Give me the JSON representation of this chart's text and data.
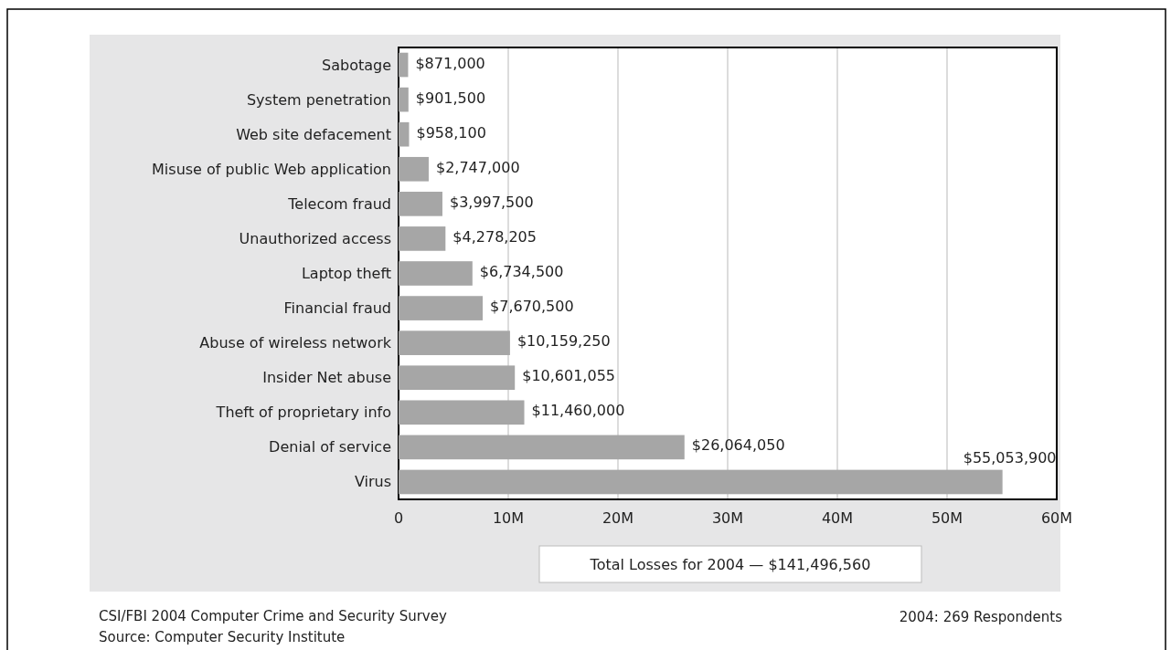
{
  "chart_data": {
    "type": "bar",
    "orientation": "horizontal",
    "categories": [
      "Sabotage",
      "System penetration",
      "Web site defacement",
      "Misuse of public Web application",
      "Telecom fraud",
      "Unauthorized access",
      "Laptop theft",
      "Financial fraud",
      "Abuse of wireless network",
      "Insider Net abuse",
      "Theft of proprietary info",
      "Denial of service",
      "Virus"
    ],
    "values": [
      871000,
      901500,
      958100,
      2747000,
      3997500,
      4278205,
      6734500,
      7670500,
      10159250,
      10601055,
      11460000,
      26064050,
      55053900
    ],
    "value_labels": [
      "$871,000",
      "$901,500",
      "$958,100",
      "$2,747,000",
      "$3,997,500",
      "$4,278,205",
      "$6,734,500",
      "$7,670,500",
      "$10,159,250",
      "$10,601,055",
      "$11,460,000",
      "$26,064,050",
      "$55,053,900"
    ],
    "color": "#a6a6a6",
    "xlim": [
      0,
      60000000
    ],
    "xticks": [
      {
        "value": 0,
        "label": "0"
      },
      {
        "value": 10000000,
        "label": "10M"
      },
      {
        "value": 20000000,
        "label": "20M"
      },
      {
        "value": 30000000,
        "label": "30M"
      },
      {
        "value": 40000000,
        "label": "40M"
      },
      {
        "value": 50000000,
        "label": "50M"
      },
      {
        "value": 60000000,
        "label": "60M"
      }
    ],
    "grid": "x",
    "annotations": [
      "Total Losses for 2004 — $141,496,560",
      "CSI/FBI 2004 Computer Crime and Security Survey",
      "Source: Computer Security Institute",
      "2004: 269 Respondents"
    ]
  }
}
